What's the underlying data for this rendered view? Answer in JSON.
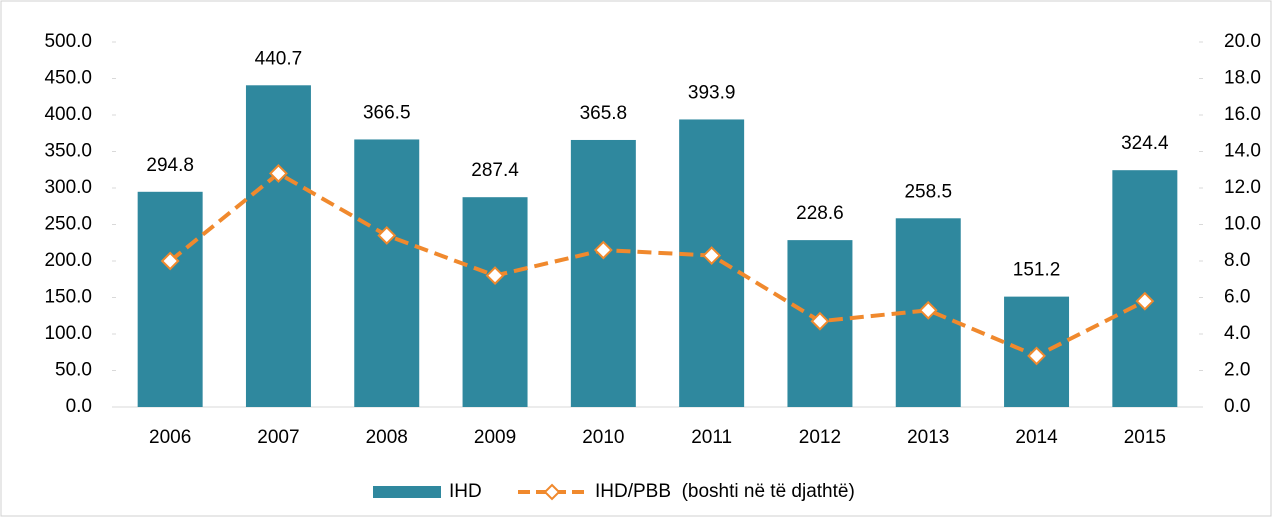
{
  "chart_data": {
    "type": "bar_line",
    "categories": [
      "2006",
      "2007",
      "2008",
      "2009",
      "2010",
      "2011",
      "2012",
      "2013",
      "2014",
      "2015"
    ],
    "series": [
      {
        "name": "IHD",
        "type": "bar",
        "color": "#2f889e",
        "values": [
          294.8,
          440.7,
          366.5,
          287.4,
          365.8,
          393.9,
          228.6,
          258.5,
          151.2,
          324.4
        ]
      },
      {
        "name": "IHD/PBB  (boshti në të djathtë)",
        "type": "line",
        "axis": "y2",
        "color": "#f0892d",
        "values": [
          8.0,
          12.8,
          9.4,
          7.2,
          8.6,
          8.3,
          4.7,
          5.3,
          2.8,
          5.8
        ]
      }
    ],
    "ylim": [
      0,
      500
    ],
    "yticks": [
      {
        "value": 0,
        "label": "0.0"
      },
      {
        "value": 50,
        "label": "50.0"
      },
      {
        "value": 100,
        "label": "100.0"
      },
      {
        "value": 150,
        "label": "150.0"
      },
      {
        "value": 200,
        "label": "200.0"
      },
      {
        "value": 250,
        "label": "250.0"
      },
      {
        "value": 300,
        "label": "300.0"
      },
      {
        "value": 350,
        "label": "350.0"
      },
      {
        "value": 400,
        "label": "400.0"
      },
      {
        "value": 450,
        "label": "450.0"
      },
      {
        "value": 500,
        "label": "500.0"
      }
    ],
    "y2lim": [
      0,
      20
    ],
    "y2ticks": [
      {
        "value": 0,
        "label": "0.0"
      },
      {
        "value": 2,
        "label": "2.0"
      },
      {
        "value": 4,
        "label": "4.0"
      },
      {
        "value": 6,
        "label": "6.0"
      },
      {
        "value": 8,
        "label": "8.0"
      },
      {
        "value": 10,
        "label": "10.0"
      },
      {
        "value": 12,
        "label": "12.0"
      },
      {
        "value": 14,
        "label": "14.0"
      },
      {
        "value": 16,
        "label": "16.0"
      },
      {
        "value": 18,
        "label": "18.0"
      },
      {
        "value": 20,
        "label": "20.0"
      }
    ],
    "grid": false,
    "legend": "bottom"
  }
}
